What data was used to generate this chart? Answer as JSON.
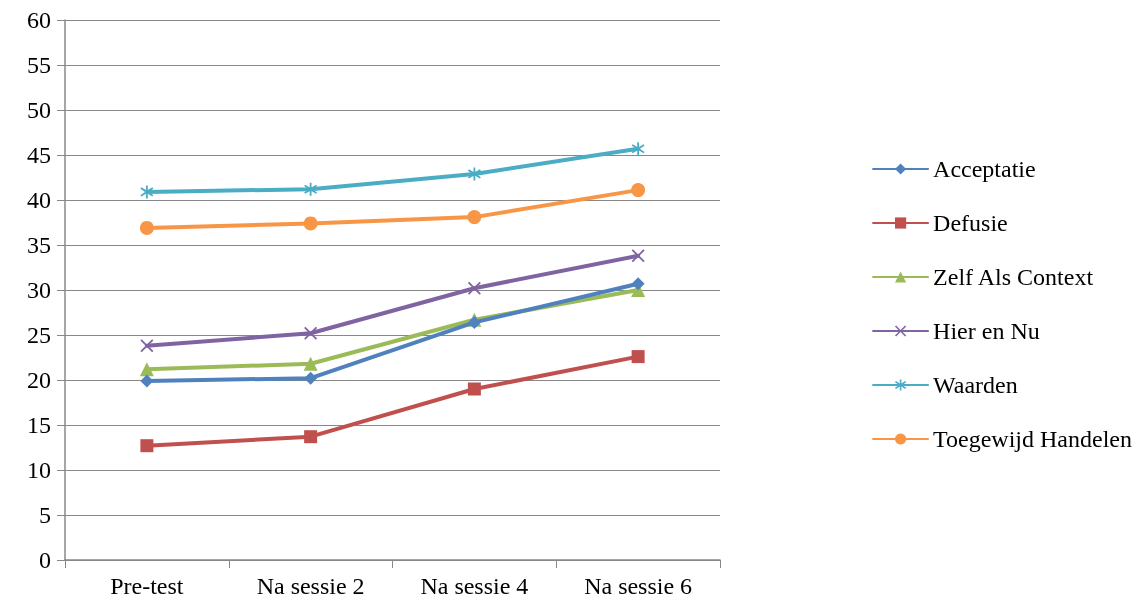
{
  "chart_data": {
    "type": "line",
    "categories": [
      "Pre-test",
      "Na sessie 2",
      "Na sessie 4",
      "Na sessie 6"
    ],
    "series": [
      {
        "name": "Acceptatie",
        "color": "#4f81bd",
        "marker": "diamond",
        "values": [
          19.9,
          20.2,
          26.4,
          30.7
        ]
      },
      {
        "name": "Defusie",
        "color": "#c0504d",
        "marker": "square",
        "values": [
          12.7,
          13.7,
          19.0,
          22.6
        ]
      },
      {
        "name": "Zelf Als Context",
        "color": "#9bbb59",
        "marker": "triangle",
        "values": [
          21.2,
          21.8,
          26.7,
          30.0
        ]
      },
      {
        "name": "Hier en Nu",
        "color": "#8064a2",
        "marker": "cross",
        "values": [
          23.8,
          25.2,
          30.2,
          33.8
        ]
      },
      {
        "name": "Waarden",
        "color": "#4bacc6",
        "marker": "star",
        "values": [
          40.9,
          41.2,
          42.9,
          45.7
        ]
      },
      {
        "name": "Toegewijd Handelen",
        "color": "#f79646",
        "marker": "circle",
        "values": [
          36.9,
          37.4,
          38.1,
          41.1
        ]
      }
    ],
    "ylim": [
      0,
      60
    ],
    "yticks": [
      0,
      5,
      10,
      15,
      20,
      25,
      30,
      35,
      40,
      45,
      50,
      55,
      60
    ],
    "grid": "y",
    "legend": "right",
    "line_style": "solid"
  }
}
